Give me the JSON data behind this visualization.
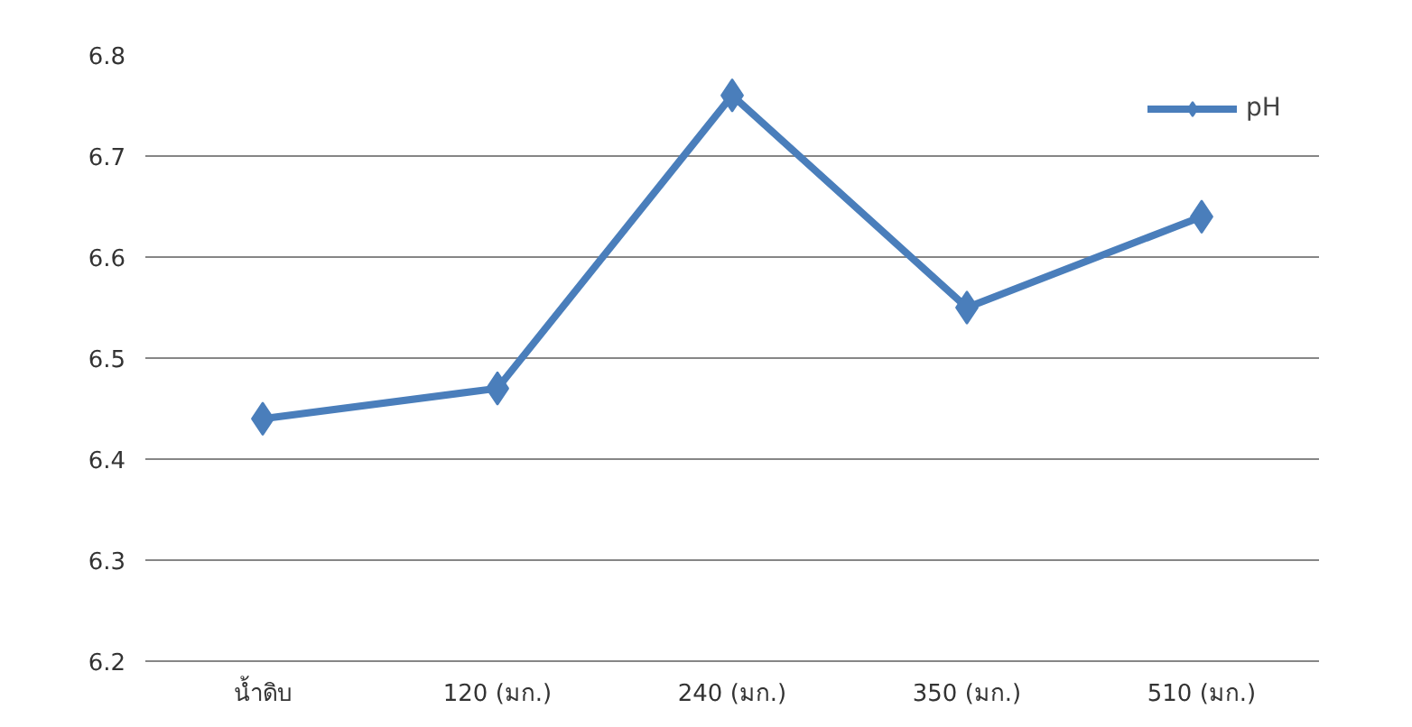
{
  "chart_data": {
    "type": "line",
    "categories": [
      "น้ำดิบ",
      "120 (มก.)",
      "240 (มก.)",
      "350 (มก.)",
      "510 (มก.)"
    ],
    "series": [
      {
        "name": "pH",
        "color": "#4a7ebb",
        "values": [
          6.44,
          6.47,
          6.76,
          6.55,
          6.64
        ]
      }
    ],
    "ylim": [
      6.2,
      6.8
    ],
    "yticks": [
      6.2,
      6.3,
      6.4,
      6.5,
      6.6,
      6.7,
      6.8
    ],
    "grid": "y",
    "legend": "top right",
    "marker": "diamond",
    "line_style": "solid"
  }
}
